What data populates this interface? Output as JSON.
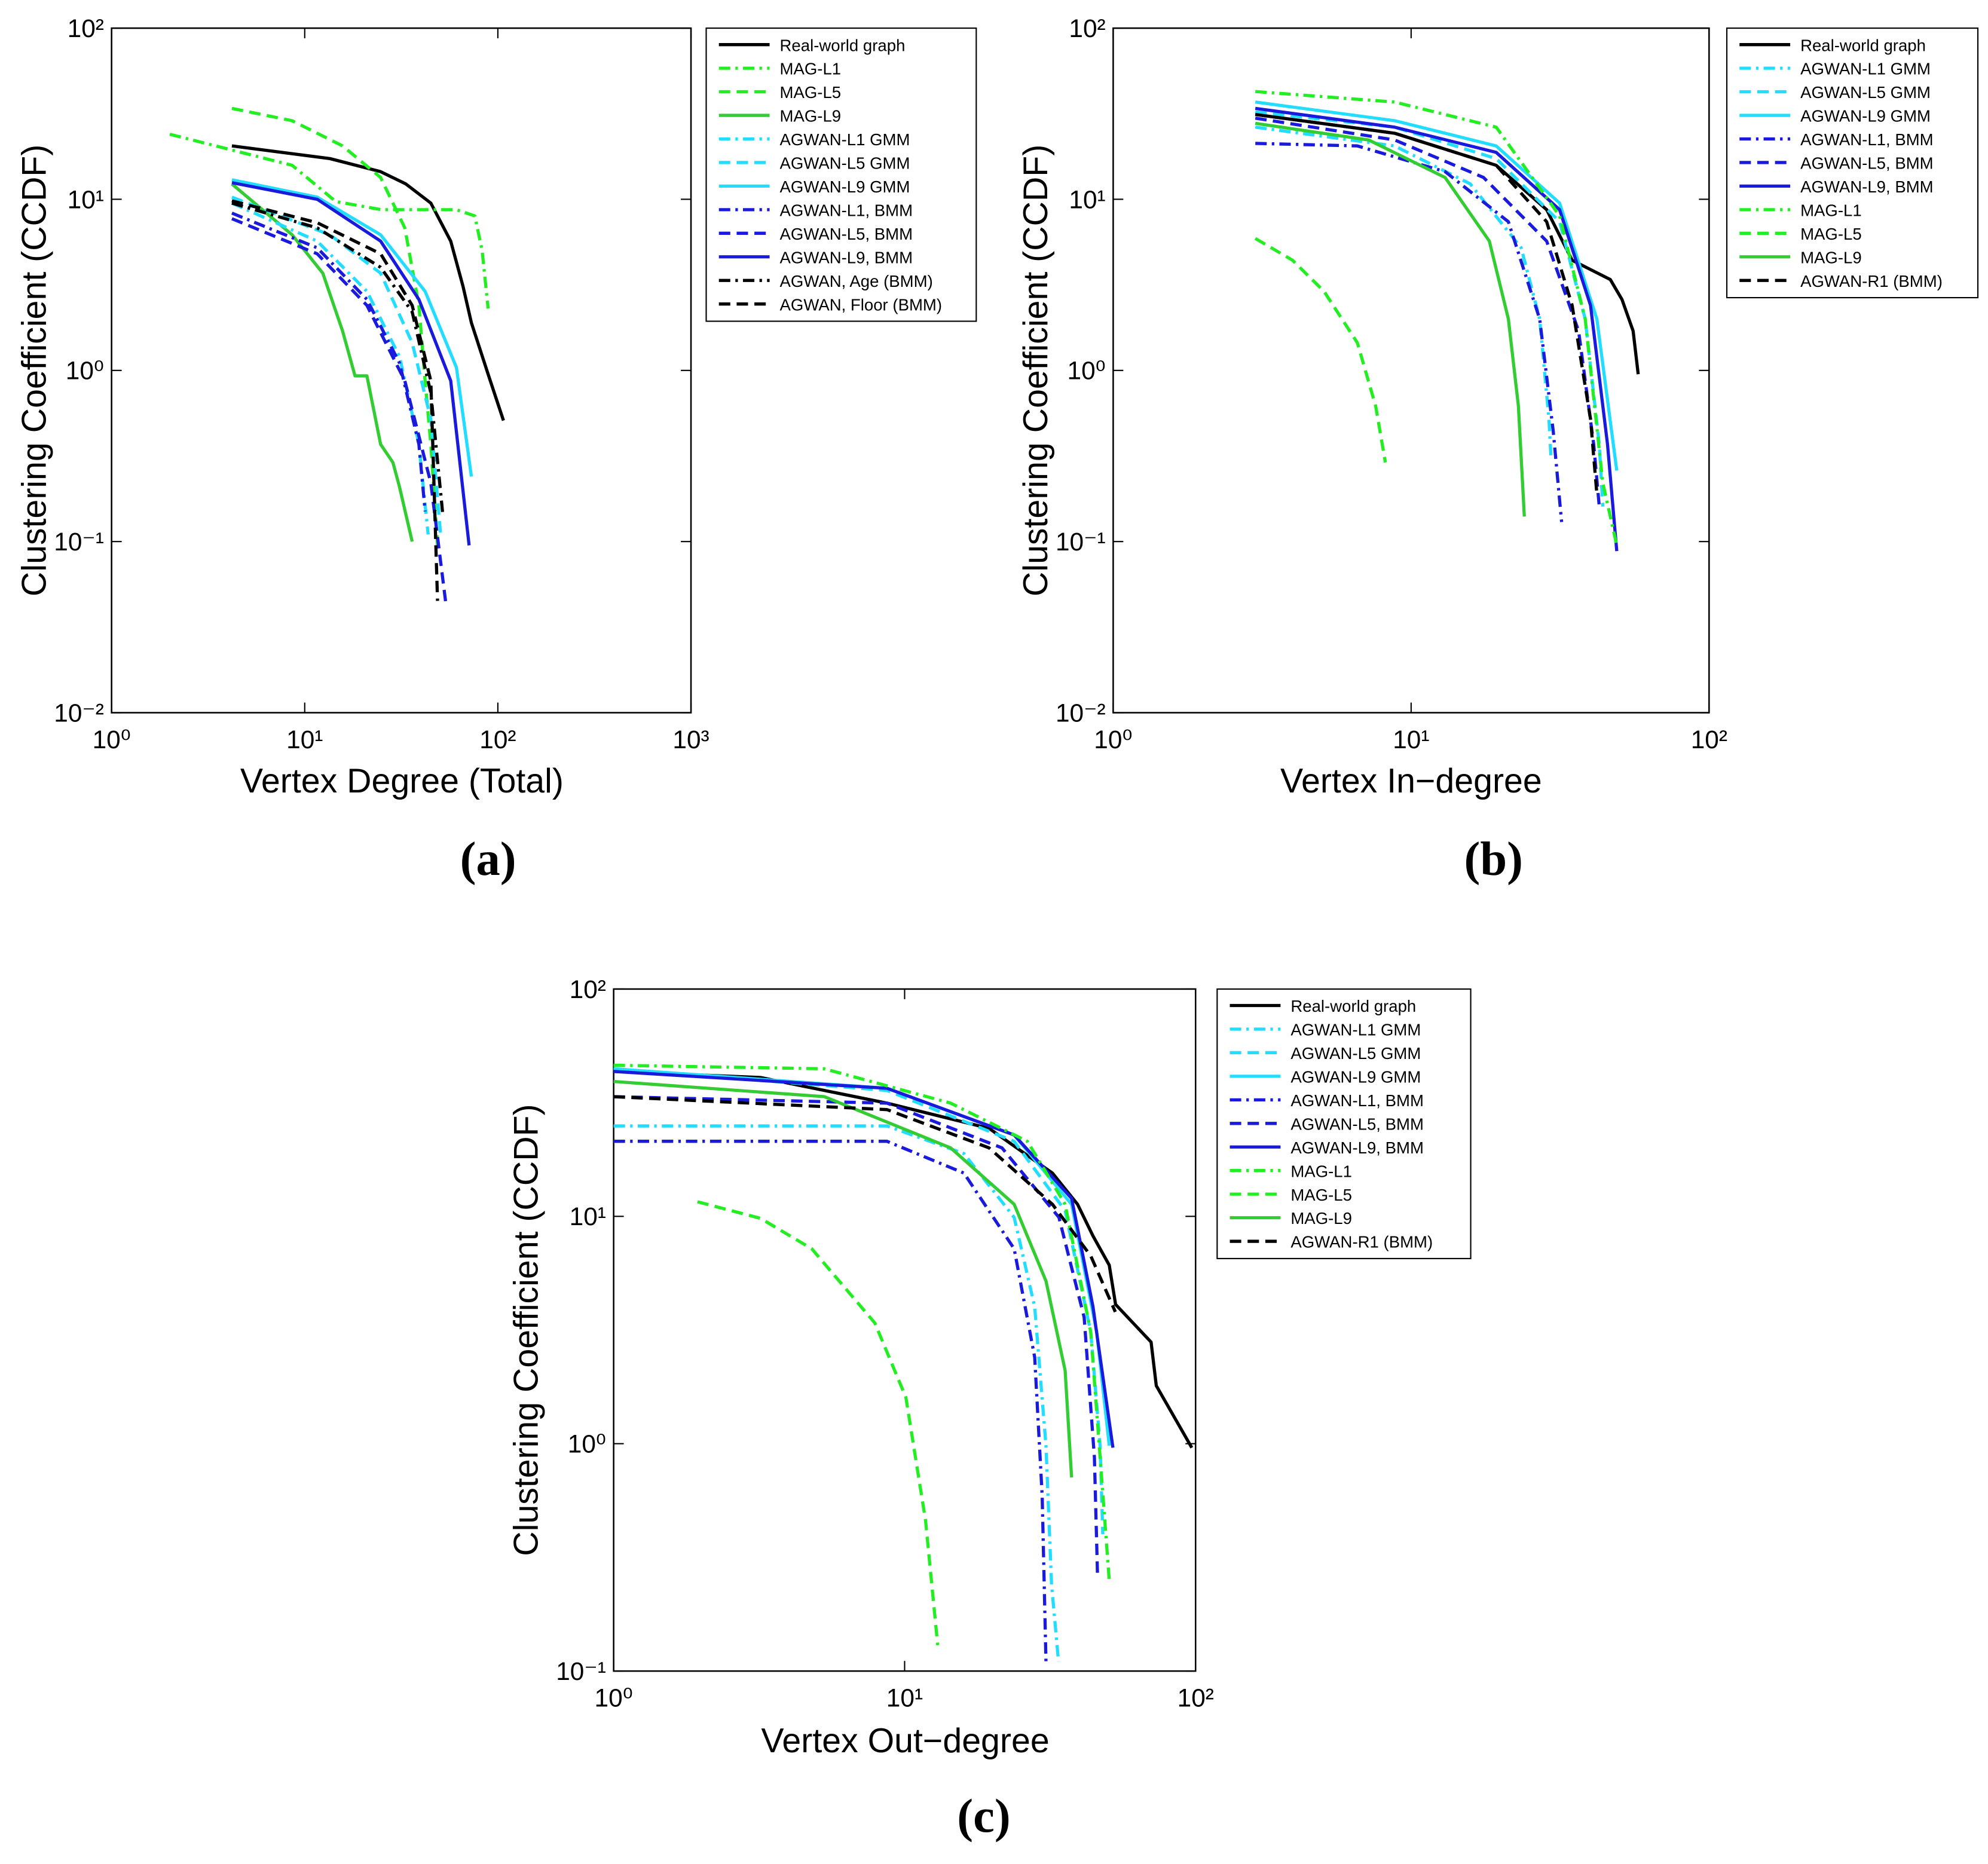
{
  "chart_data": [
    {
      "type": "line",
      "label": "(a)",
      "xlabel": "Vertex Degree (Total)",
      "ylabel": "Clustering Coefficient (CCDF)",
      "xscale": "log",
      "yscale": "log",
      "xlim": [
        1,
        1000
      ],
      "ylim": [
        0.01,
        100
      ],
      "xticks": [
        {
          "value": 1,
          "label": "10⁰"
        },
        {
          "value": 10,
          "label": "10¹"
        },
        {
          "value": 100,
          "label": "10²"
        },
        {
          "value": 1000,
          "label": "10³"
        }
      ],
      "yticks": [
        {
          "value": 0.01,
          "label": "10⁻²"
        },
        {
          "value": 0.1,
          "label": "10⁻¹"
        },
        {
          "value": 1,
          "label": "10⁰"
        },
        {
          "value": 10,
          "label": "10¹"
        },
        {
          "value": 100,
          "label": "10²"
        }
      ],
      "series": [
        {
          "name": "Real-world graph",
          "color": "#000000",
          "linestyle": "solid",
          "x": [
            4.2,
            13.5,
            24.7,
            33.4,
            45,
            57,
            66,
            73,
            89,
            107
          ],
          "values": [
            20.5,
            17.3,
            14.5,
            12.3,
            9.5,
            5.7,
            3.1,
            1.9,
            0.95,
            0.51
          ]
        },
        {
          "name": "MAG-L1",
          "color": "#22ee22",
          "linestyle": "dashdot",
          "x": [
            2,
            8.6,
            14.5,
            25,
            61,
            76,
            83,
            89
          ],
          "values": [
            24,
            15.8,
            9.7,
            8.7,
            8.7,
            8,
            5,
            2.3
          ]
        },
        {
          "name": "MAG-L5",
          "color": "#22ee22",
          "linestyle": "dashed",
          "x": [
            4.2,
            8.6,
            15.7,
            24.7,
            33,
            39,
            42,
            45,
            48.7
          ],
          "values": [
            34,
            28.8,
            20.5,
            13.4,
            6.8,
            2.4,
            0.87,
            0.37,
            0.095
          ]
        },
        {
          "name": "MAG-L9",
          "color": "#33cc33",
          "linestyle": "solid",
          "x": [
            4.2,
            8.6,
            12.4,
            15.7,
            18.2,
            21,
            24.7,
            28.6,
            30.9,
            36
          ],
          "values": [
            12.3,
            6.2,
            3.7,
            1.7,
            0.93,
            0.93,
            0.37,
            0.29,
            0.21,
            0.1
          ]
        },
        {
          "name": "AGWAN-L1 GMM",
          "color": "#22ddff",
          "linestyle": "dashdot",
          "x": [
            4.2,
            11.6,
            21,
            31,
            39,
            43.6
          ],
          "values": [
            9.5,
            5.7,
            2.9,
            1.2,
            0.37,
            0.11
          ]
        },
        {
          "name": "AGWAN-L5 GMM",
          "color": "#22ddff",
          "linestyle": "dashed",
          "x": [
            4.2,
            13.5,
            24.7,
            36,
            45,
            50.5
          ],
          "values": [
            10.3,
            6.2,
            3.7,
            1.45,
            0.52,
            0.11
          ]
        },
        {
          "name": "AGWAN-L9 GMM",
          "color": "#22ddff",
          "linestyle": "solid",
          "x": [
            4.2,
            11.6,
            24.7,
            42,
            61,
            73
          ],
          "values": [
            13,
            10.3,
            6.2,
            2.9,
            1.04,
            0.24
          ]
        },
        {
          "name": "AGWAN-L1, BMM",
          "color": "#1a1add",
          "linestyle": "dashdot",
          "x": [
            4.2,
            11.6,
            21,
            31,
            39,
            42
          ],
          "values": [
            8.3,
            5.2,
            2.6,
            1.1,
            0.37,
            0.15
          ]
        },
        {
          "name": "AGWAN-L5, BMM",
          "color": "#1a1add",
          "linestyle": "dashed",
          "x": [
            4.2,
            11.6,
            21,
            33,
            45,
            54
          ],
          "values": [
            7.7,
            4.8,
            2.4,
            0.87,
            0.22,
            0.042
          ]
        },
        {
          "name": "AGWAN-L9, BMM",
          "color": "#1a1add",
          "linestyle": "solid",
          "x": [
            4.2,
            11.6,
            24.7,
            39,
            57,
            71
          ],
          "values": [
            12.5,
            10,
            5.7,
            2.6,
            0.87,
            0.095
          ]
        },
        {
          "name": "AGWAN, Age (BMM)",
          "color": "#000000",
          "linestyle": "dashdot",
          "x": [
            4.2,
            11.6,
            24.7,
            36,
            45,
            52
          ],
          "values": [
            9.5,
            6.8,
            4,
            2.2,
            0.74,
            0.14
          ]
        },
        {
          "name": "AGWAN, Floor (BMM)",
          "color": "#000000",
          "linestyle": "dashed",
          "x": [
            4.2,
            11.6,
            24.7,
            36,
            45,
            48.7
          ],
          "values": [
            9.8,
            7.3,
            4.8,
            2.4,
            0.87,
            0.045
          ]
        }
      ]
    },
    {
      "type": "line",
      "label": "(b)",
      "xlabel": "Vertex In−degree",
      "ylabel": "Clustering Coefficient (CCDF)",
      "xscale": "log",
      "yscale": "log",
      "xlim": [
        1,
        100
      ],
      "ylim": [
        0.01,
        100
      ],
      "xticks": [
        {
          "value": 1,
          "label": "10⁰"
        },
        {
          "value": 10,
          "label": "10¹"
        },
        {
          "value": 100,
          "label": "10²"
        }
      ],
      "yticks": [
        {
          "value": 0.01,
          "label": "10⁻²"
        },
        {
          "value": 0.1,
          "label": "10⁻¹"
        },
        {
          "value": 1,
          "label": "10⁰"
        },
        {
          "value": 10,
          "label": "10¹"
        },
        {
          "value": 100,
          "label": "10²"
        }
      ],
      "series": [
        {
          "name": "Real-world graph",
          "color": "#000000",
          "linestyle": "solid",
          "x": [
            3,
            8.8,
            19.3,
            28.5,
            34.7,
            46.6,
            51,
            55.6,
            57.8
          ],
          "values": [
            31.3,
            24.3,
            15.8,
            8.7,
            4.4,
            3.4,
            2.6,
            1.7,
            0.95
          ]
        },
        {
          "name": "AGWAN-L1 GMM",
          "color": "#22ddff",
          "linestyle": "dashdot",
          "x": [
            3,
            8.8,
            15.8,
            23.4,
            27,
            29,
            29.5
          ],
          "values": [
            26.4,
            20.5,
            12.3,
            5.2,
            2,
            0.52,
            0.3
          ]
        },
        {
          "name": "AGWAN-L5 GMM",
          "color": "#22ddff",
          "linestyle": "dashed",
          "x": [
            3,
            8.8,
            19.3,
            31.5,
            38.4,
            42.8,
            44
          ],
          "values": [
            32.4,
            26.4,
            17.3,
            7.4,
            2,
            0.37,
            0.16
          ]
        },
        {
          "name": "AGWAN-L9 GMM",
          "color": "#22ddff",
          "linestyle": "solid",
          "x": [
            3,
            8.8,
            19.3,
            31.5,
            42,
            49
          ],
          "values": [
            37,
            28.8,
            20.5,
            9.5,
            2,
            0.26
          ]
        },
        {
          "name": "AGWAN-L1, BMM",
          "color": "#1a1add",
          "linestyle": "dashdot",
          "x": [
            3,
            6.6,
            13,
            21.2,
            27,
            30,
            32
          ],
          "values": [
            21.2,
            20.5,
            14.5,
            7.4,
            2,
            0.44,
            0.13
          ]
        },
        {
          "name": "AGWAN-L5, BMM",
          "color": "#1a1add",
          "linestyle": "dashed",
          "x": [
            3,
            8.8,
            17.5,
            28.5,
            36.5,
            41,
            42.8
          ],
          "values": [
            29.8,
            22.2,
            13.4,
            5.7,
            1.7,
            0.37,
            0.16
          ]
        },
        {
          "name": "AGWAN-L9, BMM",
          "color": "#1a1add",
          "linestyle": "solid",
          "x": [
            3,
            8.8,
            19.3,
            31.5,
            40,
            45.6,
            49
          ],
          "values": [
            34,
            26.4,
            18.8,
            8.7,
            2.4,
            0.37,
            0.088
          ]
        },
        {
          "name": "MAG-L1",
          "color": "#22ee22",
          "linestyle": "dashdot",
          "x": [
            3,
            8.8,
            19.3,
            31.5,
            38.4,
            44,
            49
          ],
          "values": [
            42.6,
            37,
            26.4,
            8,
            2,
            0.22,
            0.095
          ]
        },
        {
          "name": "MAG-L5",
          "color": "#22ee22",
          "linestyle": "dashed",
          "x": [
            3,
            4,
            5.1,
            6.6,
            7.6,
            8.2
          ],
          "values": [
            5.9,
            4.4,
            2.9,
            1.45,
            0.62,
            0.29
          ]
        },
        {
          "name": "MAG-L9",
          "color": "#33cc33",
          "linestyle": "solid",
          "x": [
            3,
            7.2,
            13,
            18.3,
            21.2,
            22.9,
            24
          ],
          "values": [
            27.8,
            22.2,
            13.4,
            5.7,
            2,
            0.62,
            0.14
          ]
        },
        {
          "name": "AGWAN-R1 (BMM)",
          "color": "#000000",
          "linestyle": "dashed",
          "x": [
            3,
            8.8,
            19.3,
            28.5,
            34.7,
            40,
            42
          ],
          "values": [
            31.3,
            24.3,
            15.8,
            7.4,
            2.4,
            0.52,
            0.19
          ]
        }
      ]
    },
    {
      "type": "line",
      "label": "(c)",
      "xlabel": "Vertex Out−degree",
      "ylabel": "Clustering Coefficient (CCDF)",
      "xscale": "log",
      "yscale": "log",
      "xlim": [
        1,
        100
      ],
      "ylim": [
        0.1,
        100
      ],
      "xticks": [
        {
          "value": 1,
          "label": "10⁰"
        },
        {
          "value": 10,
          "label": "10¹"
        },
        {
          "value": 100,
          "label": "10²"
        }
      ],
      "yticks": [
        {
          "value": 0.1,
          "label": "10⁻¹"
        },
        {
          "value": 1,
          "label": "10⁰"
        },
        {
          "value": 10,
          "label": "10¹"
        },
        {
          "value": 100,
          "label": "10²"
        }
      ],
      "series": [
        {
          "name": "Real-world graph",
          "color": "#000000",
          "linestyle": "solid",
          "x": [
            1,
            3.2,
            8.7,
            19.5,
            32.2,
            39.3,
            44.4,
            50.5,
            53.1,
            70.3,
            73.3,
            97
          ],
          "values": [
            43.4,
            40.8,
            31.5,
            24.4,
            15.5,
            11.3,
            8.2,
            6.1,
            4.1,
            2.8,
            1.8,
            0.96
          ]
        },
        {
          "name": "AGWAN-L1 GMM",
          "color": "#22ddff",
          "linestyle": "dashdot",
          "x": [
            1,
            8.7,
            16,
            23.8,
            28,
            30.6,
            32,
            33.8
          ],
          "values": [
            25,
            25,
            18.9,
            9.9,
            4,
            0.98,
            0.24,
            0.11
          ]
        },
        {
          "name": "AGWAN-L5 GMM",
          "color": "#22ddff",
          "linestyle": "dashed",
          "x": [
            1,
            8.7,
            23.8,
            35.6,
            43.6,
            47,
            48
          ],
          "values": [
            44.6,
            35.8,
            21.4,
            10.6,
            3.1,
            0.98,
            0.4
          ]
        },
        {
          "name": "AGWAN-L9 GMM",
          "color": "#22ddff",
          "linestyle": "solid",
          "x": [
            1,
            8.7,
            23.8,
            37.5,
            45.7,
            50.5
          ],
          "values": [
            44.6,
            36.6,
            22.8,
            11.3,
            3.1,
            0.98
          ]
        },
        {
          "name": "AGWAN-L1, BMM",
          "color": "#1a1add",
          "linestyle": "dashdot",
          "x": [
            1,
            8.7,
            16,
            23.8,
            28,
            29.7,
            30.6
          ],
          "values": [
            21.4,
            21.4,
            15.5,
            7.2,
            2.4,
            0.59,
            0.11
          ]
        },
        {
          "name": "AGWAN-L5, BMM",
          "color": "#1a1add",
          "linestyle": "dashed",
          "x": [
            1,
            8.7,
            21.6,
            33.9,
            41.4,
            44.9,
            46
          ],
          "values": [
            33.6,
            31.5,
            20,
            9.9,
            3.6,
            0.87,
            0.27
          ]
        },
        {
          "name": "AGWAN-L9, BMM",
          "color": "#1a1add",
          "linestyle": "solid",
          "x": [
            1,
            8.7,
            23.8,
            37.5,
            44.4,
            52
          ],
          "values": [
            43.4,
            36.6,
            22.8,
            12,
            4,
            0.96
          ]
        },
        {
          "name": "MAG-L1",
          "color": "#22ee22",
          "linestyle": "dashdot",
          "x": [
            1,
            5.3,
            14.4,
            26.4,
            35.6,
            43.6,
            47,
            50.5
          ],
          "values": [
            46.2,
            44.6,
            31.5,
            21.4,
            11.3,
            3.1,
            0.87,
            0.25
          ]
        },
        {
          "name": "MAG-L5",
          "color": "#22ee22",
          "linestyle": "dashed",
          "x": [
            1.94,
            3.2,
            4.8,
            7.9,
            10.1,
            11.8,
            13
          ],
          "values": [
            11.6,
            9.8,
            7.2,
            3.4,
            1.6,
            0.46,
            0.13
          ]
        },
        {
          "name": "MAG-L9",
          "color": "#33cc33",
          "linestyle": "solid",
          "x": [
            1,
            5.3,
            14.4,
            23.8,
            30.6,
            35.6,
            37.5
          ],
          "values": [
            39.2,
            33.6,
            20,
            11.3,
            5.2,
            2.1,
            0.71
          ]
        },
        {
          "name": "AGWAN-R1 (BMM)",
          "color": "#000000",
          "linestyle": "dashed",
          "x": [
            1,
            8.7,
            19.5,
            32.2,
            43.6,
            53
          ],
          "values": [
            33.6,
            29.5,
            20,
            11.3,
            6.7,
            3.8
          ]
        }
      ]
    }
  ]
}
